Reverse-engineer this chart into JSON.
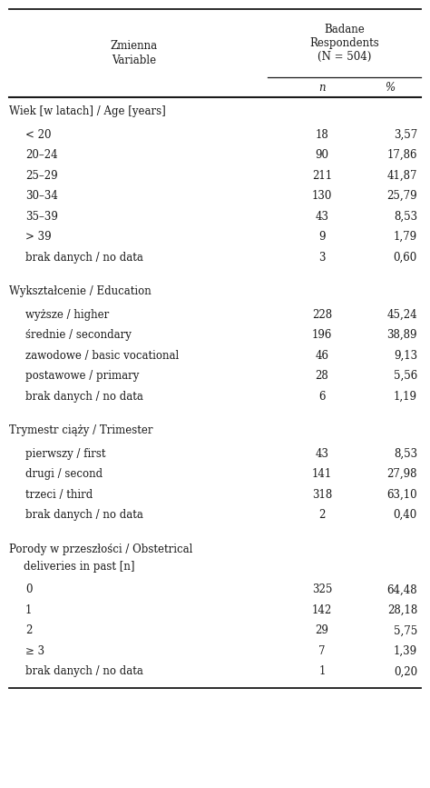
{
  "header_col1": "Zmienna\nVariable",
  "header_col2": "Badane\nRespondents\n(N = 504)",
  "subheader_n": "n",
  "subheader_pct": "%",
  "sections": [
    {
      "title": "Wiek [w latach] / Age [years]",
      "title_lines": 1,
      "rows": [
        {
          "label": "< 20",
          "n": "18",
          "pct": "3,57"
        },
        {
          "label": "20–24",
          "n": "90",
          "pct": "17,86"
        },
        {
          "label": "25–29",
          "n": "211",
          "pct": "41,87"
        },
        {
          "label": "30–34",
          "n": "130",
          "pct": "25,79"
        },
        {
          "label": "35–39",
          "n": "43",
          "pct": "8,53"
        },
        {
          "label": "> 39",
          "n": "9",
          "pct": "1,79"
        },
        {
          "label": "brak danych / no data",
          "n": "3",
          "pct": "0,60"
        }
      ]
    },
    {
      "title": "Wykształcenie / Education",
      "title_lines": 1,
      "rows": [
        {
          "label": "wyższe / higher",
          "n": "228",
          "pct": "45,24"
        },
        {
          "label": "średnie / secondary",
          "n": "196",
          "pct": "38,89"
        },
        {
          "label": "zawodowe / basic vocational",
          "n": "46",
          "pct": "9,13"
        },
        {
          "label": "postawowe / primary",
          "n": "28",
          "pct": "5,56"
        },
        {
          "label": "brak danych / no data",
          "n": "6",
          "pct": "1,19"
        }
      ]
    },
    {
      "title": "Trymestr ciąży / Trimester",
      "title_lines": 1,
      "rows": [
        {
          "label": "pierwszy / first",
          "n": "43",
          "pct": "8,53"
        },
        {
          "label": "drugi / second",
          "n": "141",
          "pct": "27,98"
        },
        {
          "label": "trzeci / third",
          "n": "318",
          "pct": "63,10"
        },
        {
          "label": "brak danych / no data",
          "n": "2",
          "pct": "0,40"
        }
      ]
    },
    {
      "title": "Porody w przeszłości / Obstetrical",
      "title_line2": "deliveries in past [n]",
      "title_lines": 2,
      "rows": [
        {
          "label": "0",
          "n": "325",
          "pct": "64,48"
        },
        {
          "label": "1",
          "n": "142",
          "pct": "28,18"
        },
        {
          "label": "2",
          "n": "29",
          "pct": "5,75"
        },
        {
          "label": "≥ 3",
          "n": "7",
          "pct": "1,39"
        },
        {
          "label": "brak danych / no data",
          "n": "1",
          "pct": "0,20"
        }
      ]
    }
  ],
  "bg_color": "#ffffff",
  "text_color": "#1a1a1a",
  "font_size": 8.5,
  "figwidth": 4.74,
  "figheight": 8.67,
  "dpi": 100
}
